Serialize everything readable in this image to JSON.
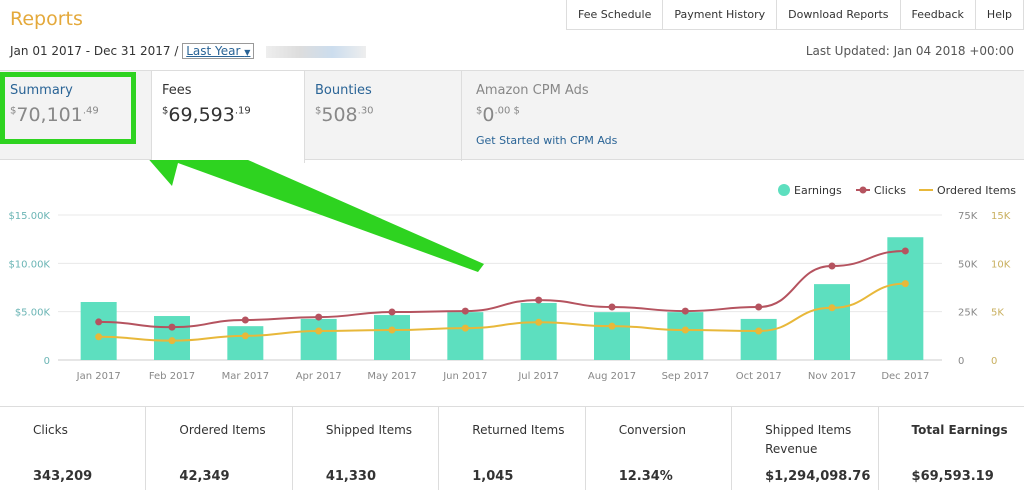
{
  "title": "Reports",
  "nav": [
    "Fee Schedule",
    "Payment History",
    "Download Reports",
    "Feedback",
    "Help"
  ],
  "date_range": "Jan 01 2017 - Dec 31 2017 /",
  "period_select": "Last Year",
  "last_updated": "Last Updated: Jan 04 2018 +00:00",
  "tabs": [
    {
      "label": "Summary",
      "currency": "$",
      "whole": "70,101",
      "cents": ".49"
    },
    {
      "label": "Fees",
      "currency": "$",
      "whole": "69,593",
      "cents": ".19"
    },
    {
      "label": "Bounties",
      "currency": "$",
      "whole": "508",
      "cents": ".30"
    },
    {
      "label": "Amazon CPM Ads",
      "currency": "$",
      "whole": "0",
      "cents": ".00 $",
      "link": "Get Started with CPM Ads"
    }
  ],
  "colors": {
    "earnings": "#5ddfbf",
    "clicks": "#b5535f",
    "ordered": "#e8b83a",
    "highlight": "#2ed320",
    "title": "#e4a93b"
  },
  "chart_data": {
    "type": "bar",
    "categories": [
      "Jan 2017",
      "Feb 2017",
      "Mar 2017",
      "Apr 2017",
      "May 2017",
      "Jun 2017",
      "Jul 2017",
      "Aug 2017",
      "Sep 2017",
      "Oct 2017",
      "Nov 2017",
      "Dec 2017"
    ],
    "left_ticks": [
      "0",
      "$5.00K",
      "$10.00K",
      "$15.00K"
    ],
    "clicks_ticks": [
      "0",
      "25K",
      "50K",
      "75K"
    ],
    "ordered_ticks": [
      "0",
      "5K",
      "10K",
      "15K"
    ],
    "legend_position": "top-right",
    "series": [
      {
        "name": "Earnings",
        "type": "bar",
        "axis": "left",
        "ylim": [
          0,
          15000
        ],
        "values": [
          6000,
          4550,
          3500,
          4250,
          4650,
          4950,
          5900,
          4950,
          4950,
          4250,
          7850,
          12700
        ]
      },
      {
        "name": "Clicks",
        "type": "line",
        "axis": "right1",
        "ylim": [
          0,
          75000
        ],
        "values": [
          19700,
          17000,
          20700,
          22200,
          24800,
          25300,
          31000,
          27400,
          25300,
          27400,
          48600,
          56400
        ]
      },
      {
        "name": "Ordered Items",
        "type": "line",
        "axis": "right2",
        "ylim": [
          0,
          15000
        ],
        "values": [
          2400,
          2000,
          2500,
          3000,
          3100,
          3300,
          3900,
          3500,
          3100,
          3000,
          5400,
          7900
        ]
      }
    ]
  },
  "stats": [
    {
      "label": "Clicks",
      "value": "343,209"
    },
    {
      "label": "Ordered Items",
      "value": "42,349"
    },
    {
      "label": "Shipped Items",
      "value": "41,330"
    },
    {
      "label": "Returned Items",
      "value": "1,045"
    },
    {
      "label": "Conversion",
      "value": "12.34%"
    },
    {
      "label": "Shipped Items Revenue",
      "value": "$1,294,098.76"
    },
    {
      "label": "Total Earnings",
      "value": "$69,593.19"
    }
  ]
}
